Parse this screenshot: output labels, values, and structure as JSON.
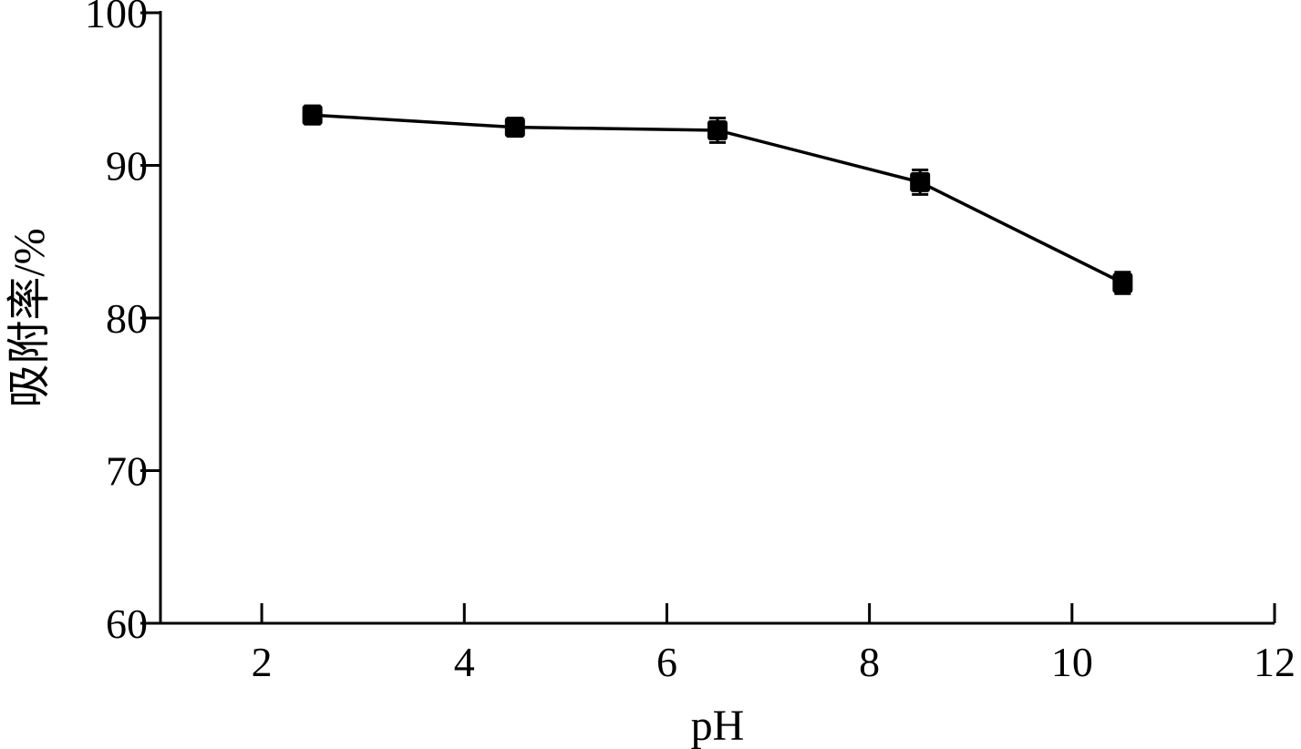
{
  "chart_data": {
    "type": "line",
    "title": "",
    "xlabel": "pH",
    "ylabel": "吸附率/%",
    "xlim": [
      1,
      12
    ],
    "ylim": [
      60,
      100
    ],
    "xticks": [
      2,
      4,
      6,
      8,
      10,
      12
    ],
    "yticks": [
      60,
      70,
      80,
      90,
      100
    ],
    "xtick_labels": [
      "2",
      "4",
      "6",
      "8",
      "10",
      "12"
    ],
    "ytick_labels": [
      "60",
      "70",
      "80",
      "90",
      "100"
    ],
    "grid": false,
    "series": [
      {
        "color": "#000000",
        "marker": "square",
        "x": [
          2.5,
          4.5,
          6.5,
          8.5,
          10.5
        ],
        "y": [
          93.3,
          92.5,
          92.3,
          88.9,
          82.3
        ],
        "error": [
          0.6,
          0.6,
          0.8,
          0.8,
          0.7
        ]
      }
    ]
  }
}
